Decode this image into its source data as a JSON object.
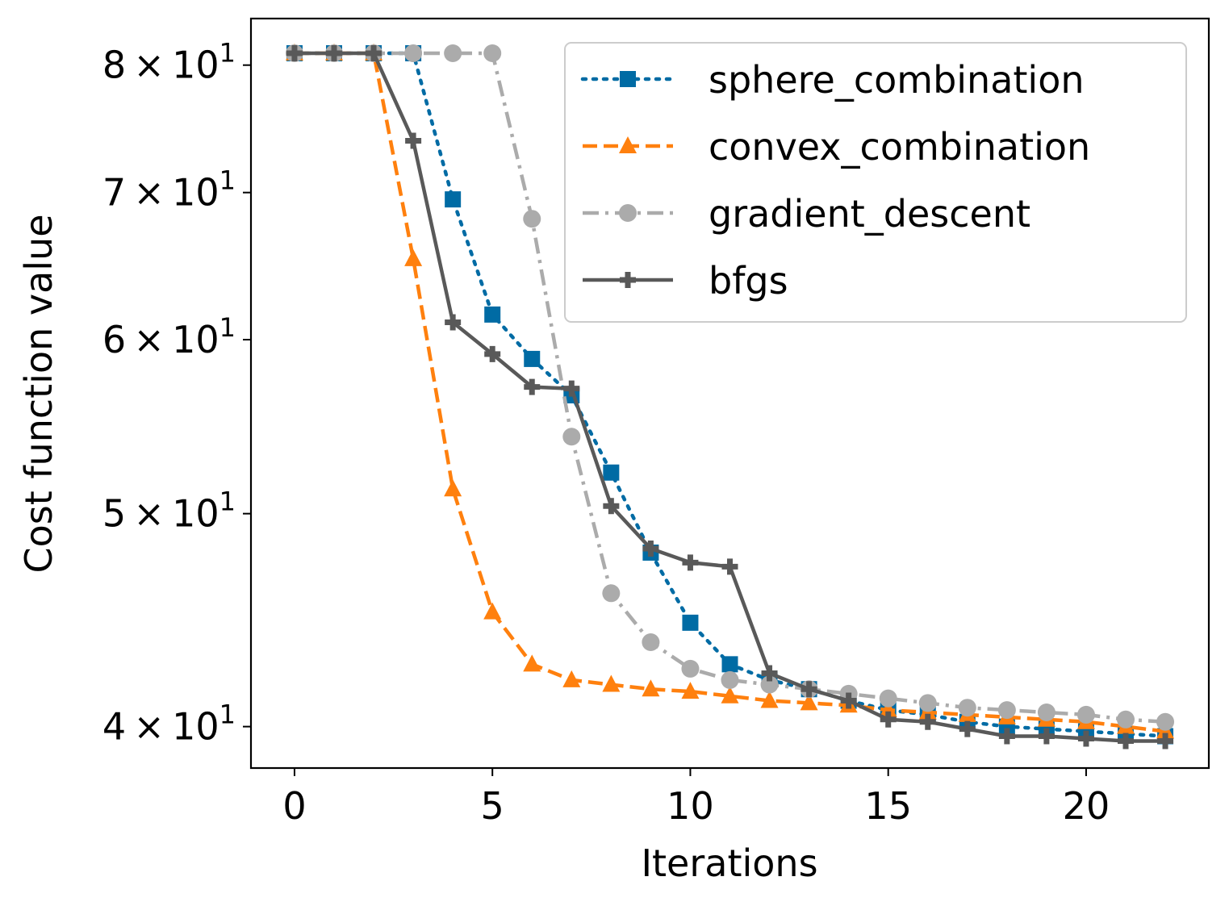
{
  "chart_data": {
    "type": "line",
    "xlabel": "Iterations",
    "ylabel": "Cost function value",
    "xlim": [
      -1.1,
      23.1
    ],
    "ylim": [
      38.3,
      84.0
    ],
    "yscale": "log",
    "xticks": [
      0,
      5,
      10,
      15,
      20
    ],
    "xtick_labels": [
      "0",
      "5",
      "10",
      "15",
      "20"
    ],
    "yticks": [
      {
        "value": 80,
        "mantissa": "8",
        "base": "10",
        "exp": "1"
      },
      {
        "value": 70,
        "mantissa": "7",
        "base": "10",
        "exp": "1"
      },
      {
        "value": 60,
        "mantissa": "6",
        "base": "10",
        "exp": "1"
      },
      {
        "value": 50,
        "mantissa": "5",
        "base": "10",
        "exp": "1"
      },
      {
        "value": 40,
        "mantissa": "4",
        "base": "10",
        "exp": "1"
      }
    ],
    "grid": false,
    "legend_position": "top-right",
    "x": [
      0,
      1,
      2,
      3,
      4,
      5,
      6,
      7,
      8,
      9,
      10,
      11,
      12,
      13,
      14,
      15,
      16,
      17,
      18,
      19,
      20,
      21,
      22
    ],
    "series": [
      {
        "name": "sphere_combination",
        "color": "#006ba4",
        "dash": "dotted",
        "marker": "square",
        "values": [
          81.0,
          81.0,
          81.0,
          81.0,
          69.5,
          61.6,
          58.8,
          56.6,
          52.2,
          48.0,
          44.6,
          42.7,
          42.0,
          41.6,
          41.1,
          40.7,
          40.5,
          40.2,
          40.0,
          39.9,
          39.8,
          39.7,
          39.6
        ]
      },
      {
        "name": "convex_combination",
        "color": "#ff800e",
        "dash": "dashed",
        "marker": "triangle",
        "values": [
          81.0,
          81.0,
          81.0,
          65.3,
          51.3,
          45.1,
          42.7,
          42.0,
          41.8,
          41.6,
          41.5,
          41.3,
          41.1,
          41.0,
          40.9,
          40.7,
          40.6,
          40.5,
          40.4,
          40.3,
          40.2,
          40.0,
          39.8
        ]
      },
      {
        "name": "gradient_descent",
        "color": "#ababab",
        "dash": "dashdot",
        "marker": "circle",
        "values": [
          81.0,
          81.0,
          81.0,
          81.0,
          81.0,
          81.0,
          68.1,
          54.2,
          46.0,
          43.7,
          42.5,
          42.0,
          41.8,
          41.6,
          41.4,
          41.2,
          41.0,
          40.8,
          40.7,
          40.6,
          40.5,
          40.3,
          40.2
        ]
      },
      {
        "name": "bfgs",
        "color": "#595959",
        "dash": "solid",
        "marker": "plus",
        "values": [
          81.0,
          81.0,
          81.0,
          73.9,
          61.1,
          59.1,
          57.1,
          57.0,
          50.4,
          48.2,
          47.5,
          47.3,
          42.3,
          41.6,
          41.1,
          40.3,
          40.2,
          39.9,
          39.6,
          39.6,
          39.5,
          39.4,
          39.4
        ]
      }
    ]
  }
}
